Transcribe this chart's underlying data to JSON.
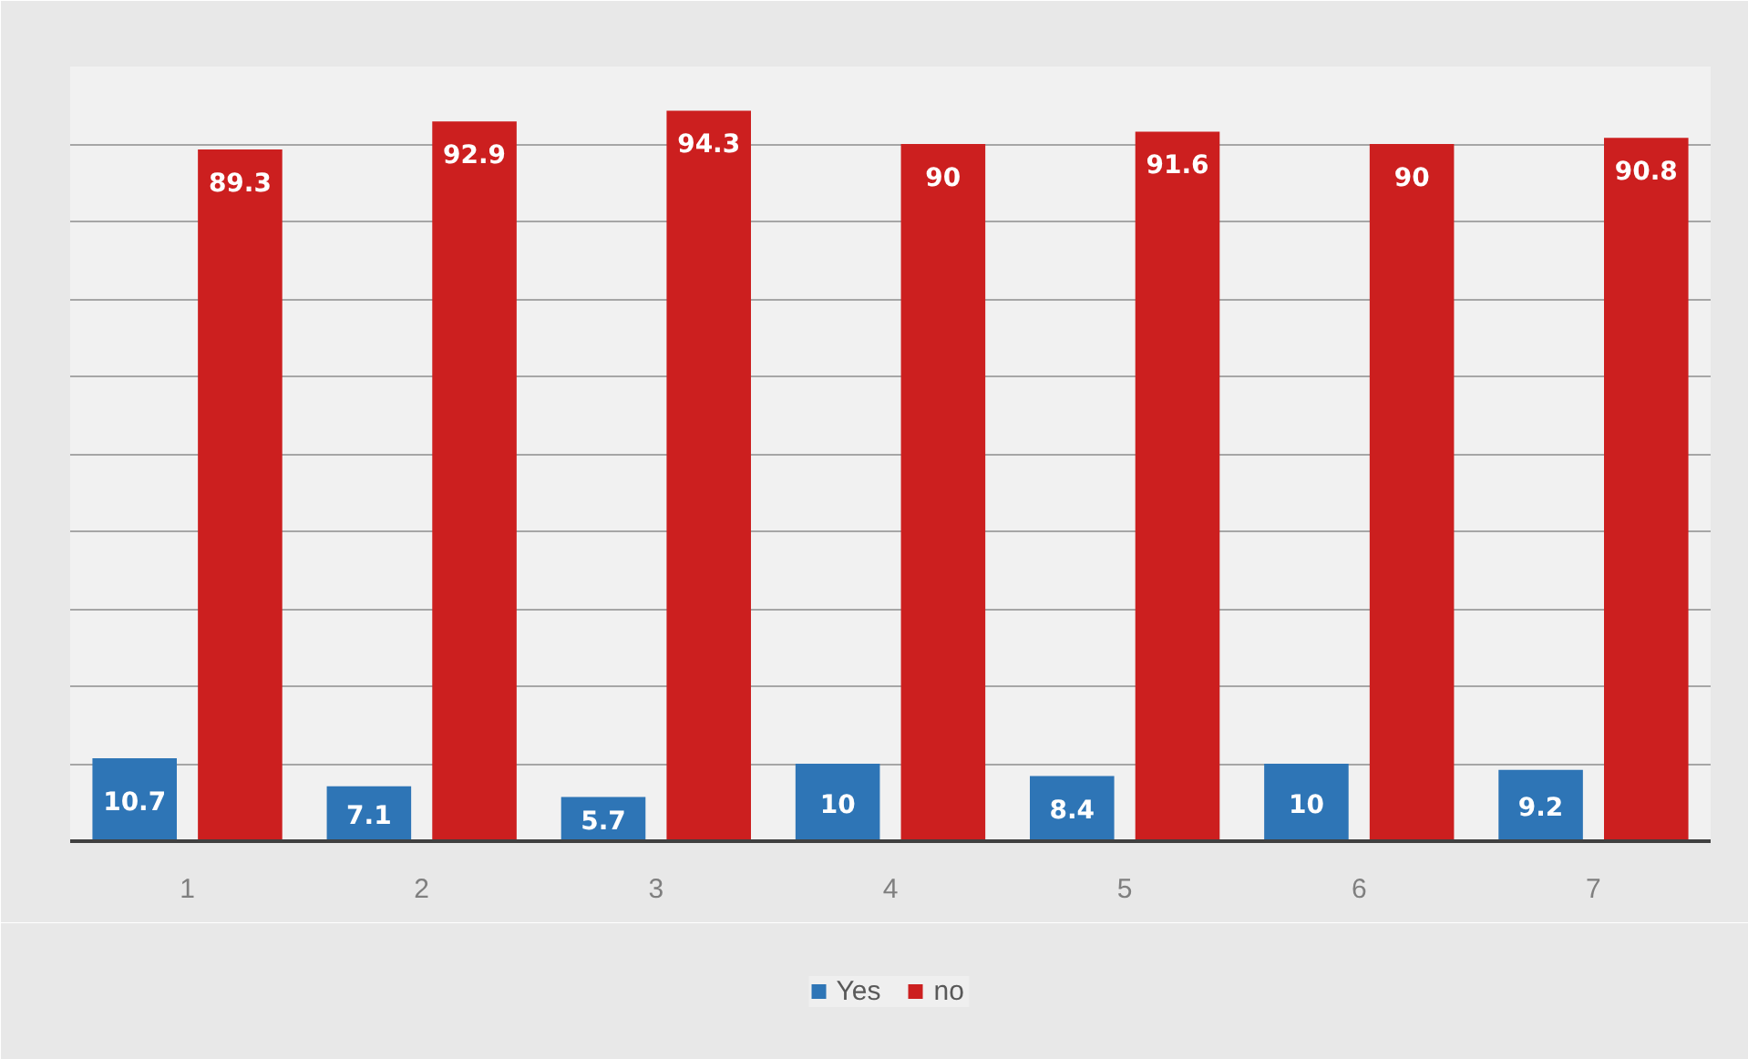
{
  "chart_data": {
    "type": "bar",
    "categories": [
      "1",
      "2",
      "3",
      "4",
      "5",
      "6",
      "7"
    ],
    "series": [
      {
        "name": "Yes",
        "color": "#2e75b6",
        "values": [
          10.7,
          7.1,
          5.7,
          10,
          8.4,
          10,
          9.2
        ]
      },
      {
        "name": "no",
        "color": "#cc1f1f",
        "values": [
          89.3,
          92.9,
          94.3,
          90,
          91.6,
          90,
          90.8
        ]
      }
    ],
    "ylim": [
      0,
      100
    ],
    "yticks": [
      {
        "value": 0,
        "label": null
      },
      {
        "value": 10,
        "label": null
      },
      {
        "value": 20,
        "label": null
      },
      {
        "value": 30,
        "label": null
      },
      {
        "value": 40,
        "label": null
      },
      {
        "value": 50,
        "label": null
      },
      {
        "value": 60,
        "label": null
      },
      {
        "value": 70,
        "label": null
      },
      {
        "value": 80,
        "label": null
      },
      {
        "value": 90,
        "label": null
      },
      {
        "value": 100,
        "label": null
      }
    ],
    "grid": "y",
    "legend": "bottom",
    "data_labels": true,
    "tick_labels": "x"
  }
}
